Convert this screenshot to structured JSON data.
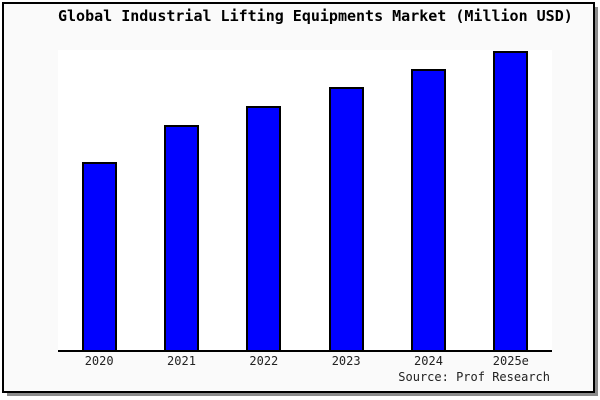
{
  "page": {
    "background": "#ffffff",
    "frame_background": "#fafafa",
    "frame_border_color": "#000000",
    "shadow_color": "#8c8c8c"
  },
  "source_credit": "Source: Prof Research",
  "chart_data": {
    "type": "bar",
    "title": "Global Industrial Lifting Equipments Market (Million USD)",
    "categories": [
      "2020",
      "2021",
      "2022",
      "2023",
      "2024",
      "2025e"
    ],
    "values": [
      62.9,
      75.3,
      81.6,
      88,
      94,
      100
    ],
    "values_note": "No y-axis or data labels shown in chart; values are relative bar heights normalized so 2025e = 100",
    "xlabel": "",
    "ylabel": "",
    "ylim": [
      0,
      100
    ],
    "grid": false,
    "legend": false,
    "y_axis_shown": false,
    "bar_color": "#0000ff",
    "bar_border_color": "#000000",
    "text_color": "#222222"
  }
}
